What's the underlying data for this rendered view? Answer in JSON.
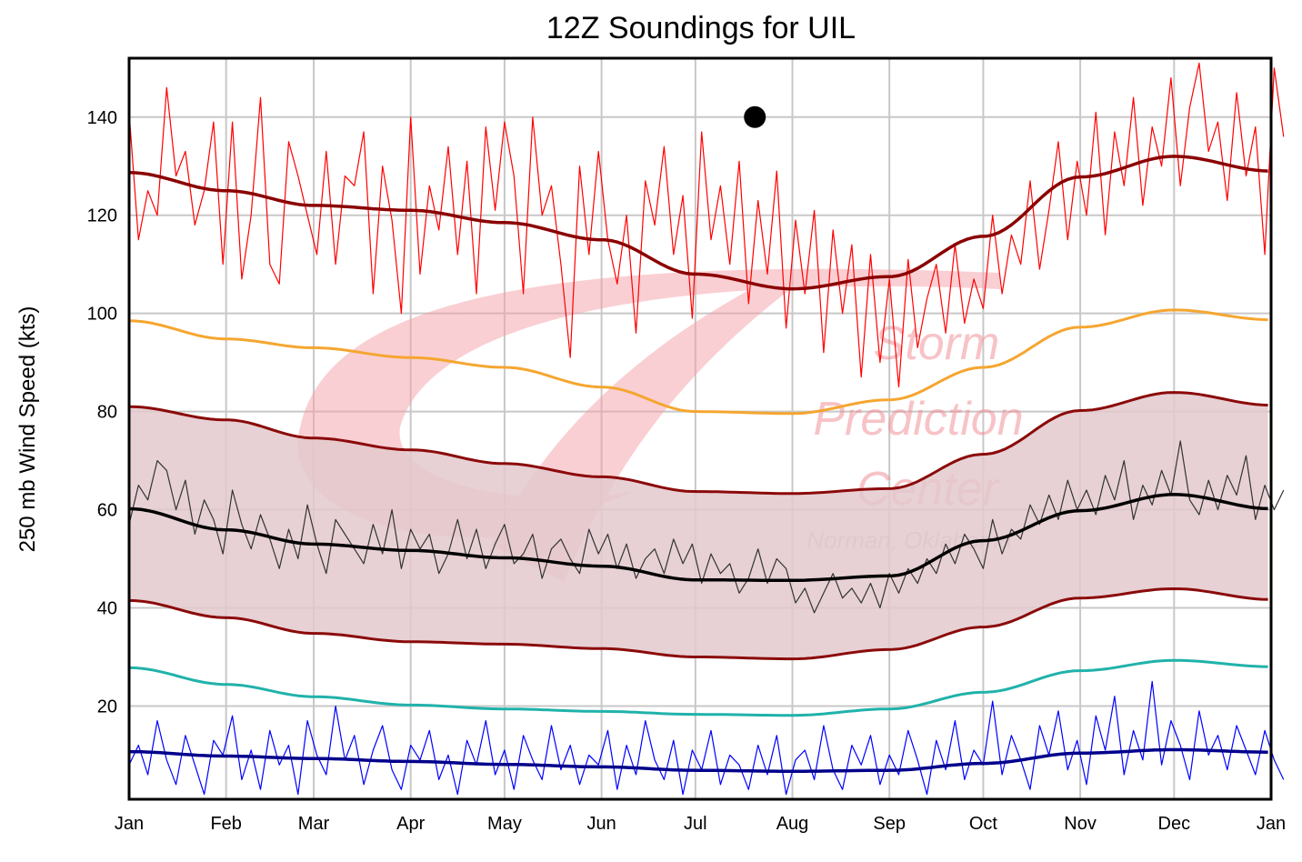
{
  "chart_data": {
    "type": "line",
    "title": "12Z Soundings for UIL",
    "xlabel": "",
    "ylabel": "250 mb Wind Speed (kts)",
    "xlim_days": [
      0,
      365
    ],
    "ylim": [
      1,
      152
    ],
    "grid": true,
    "y_ticks": [
      20,
      40,
      60,
      80,
      100,
      120,
      140
    ],
    "x_ticks": [
      {
        "label": "Jan",
        "day": 0
      },
      {
        "label": "Feb",
        "day": 31
      },
      {
        "label": "Mar",
        "day": 59
      },
      {
        "label": "Apr",
        "day": 90
      },
      {
        "label": "May",
        "day": 120
      },
      {
        "label": "Jun",
        "day": 151
      },
      {
        "label": "Jul",
        "day": 181
      },
      {
        "label": "Aug",
        "day": 212
      },
      {
        "label": "Sep",
        "day": 243
      },
      {
        "label": "Oct",
        "day": 273
      },
      {
        "label": "Nov",
        "day": 304
      },
      {
        "label": "Dec",
        "day": 334
      },
      {
        "label": "Jan",
        "day": 365
      }
    ],
    "smoothed_x_days": [
      0,
      31,
      59,
      90,
      120,
      151,
      181,
      212,
      243,
      273,
      304,
      334,
      365
    ],
    "smoothed_series": [
      {
        "name": "max-smoothed",
        "color": "#8b0000",
        "values": [
          128.7,
          125.0,
          122.0,
          121.0,
          118.5,
          115.0,
          108.0,
          105.0,
          107.5,
          115.7,
          127.8,
          132.0,
          129.0
        ]
      },
      {
        "name": "p99",
        "color": "#f5a630",
        "values": [
          98.5,
          94.8,
          93.0,
          91.0,
          89.0,
          85.0,
          80.0,
          79.6,
          82.4,
          89.0,
          97.2,
          100.7,
          98.7
        ]
      },
      {
        "name": "upper-std",
        "color": "#8b0a0a",
        "values": [
          81.0,
          78.3,
          74.6,
          72.2,
          69.4,
          66.7,
          63.7,
          63.3,
          64.3,
          71.3,
          80.2,
          83.9,
          81.3
        ]
      },
      {
        "name": "mean",
        "color": "#000000",
        "values": [
          60.2,
          55.9,
          53.0,
          51.7,
          50.2,
          48.5,
          45.7,
          45.6,
          46.5,
          53.7,
          59.8,
          63.1,
          60.2
        ]
      },
      {
        "name": "lower-std",
        "color": "#8b0a0a",
        "values": [
          41.5,
          38.0,
          34.8,
          33.1,
          32.6,
          31.7,
          30.0,
          29.6,
          31.5,
          36.1,
          42.0,
          43.9,
          41.7
        ]
      },
      {
        "name": "p1",
        "color": "#20b2aa",
        "values": [
          27.8,
          24.4,
          21.9,
          20.2,
          19.4,
          18.9,
          18.3,
          18.1,
          19.4,
          22.8,
          27.2,
          29.3,
          28.0
        ]
      },
      {
        "name": "min-smoothed",
        "color": "#00008b",
        "values": [
          10.7,
          9.8,
          9.3,
          8.7,
          8.1,
          7.6,
          6.9,
          6.7,
          6.9,
          8.3,
          10.4,
          11.1,
          10.6
        ]
      }
    ],
    "band": {
      "name": "std-band",
      "fill": "#e3c9cc",
      "between": [
        "upper-std",
        "lower-std"
      ]
    },
    "daily_x_step_days": 3,
    "daily_series": [
      {
        "name": "daily-max",
        "color": "#ff0000",
        "values": [
          141,
          115,
          125,
          120,
          146,
          128,
          133,
          118,
          125,
          139,
          110,
          139,
          107,
          120,
          144,
          110,
          106,
          135,
          128,
          120,
          112,
          133,
          110,
          128,
          126,
          137,
          104,
          130,
          119,
          100,
          140,
          108,
          126,
          117,
          134,
          112,
          131,
          104,
          138,
          121,
          139,
          128,
          104,
          140,
          120,
          126,
          110,
          91,
          130,
          112,
          133,
          115,
          106,
          120,
          96,
          127,
          118,
          134,
          112,
          124,
          99,
          137,
          115,
          126,
          110,
          131,
          102,
          123,
          108,
          129,
          97,
          119,
          104,
          121,
          92,
          117,
          100,
          114,
          87,
          112,
          90,
          107,
          85,
          111,
          93,
          103,
          110,
          96,
          114,
          98,
          107,
          101,
          120,
          104,
          116,
          110,
          127,
          109,
          121,
          135,
          115,
          131,
          120,
          141,
          116,
          137,
          126,
          144,
          122,
          138,
          130,
          148,
          126,
          142,
          151,
          133,
          139,
          123,
          145,
          128,
          138,
          112,
          150,
          136
        ]
      },
      {
        "name": "daily-mean",
        "color": "#333333",
        "values": [
          57,
          65,
          62,
          70,
          68,
          60,
          66,
          55,
          62,
          58,
          51,
          64,
          57,
          52,
          59,
          54,
          48,
          56,
          50,
          61,
          53,
          47,
          58,
          55,
          52,
          49,
          57,
          51,
          60,
          48,
          56,
          52,
          55,
          47,
          51,
          58,
          50,
          56,
          48,
          53,
          57,
          49,
          51,
          55,
          46,
          52,
          54,
          50,
          47,
          56,
          51,
          55,
          48,
          53,
          46,
          50,
          52,
          47,
          54,
          49,
          53,
          45,
          51,
          47,
          49,
          43,
          46,
          52,
          45,
          50,
          48,
          41,
          44,
          39,
          43,
          47,
          42,
          44,
          41,
          45,
          40,
          47,
          43,
          48,
          45,
          50,
          47,
          53,
          49,
          55,
          52,
          48,
          58,
          51,
          56,
          54,
          61,
          57,
          63,
          58,
          66,
          60,
          64,
          59,
          67,
          62,
          70,
          58,
          65,
          61,
          68,
          63,
          74,
          62,
          59,
          66,
          60,
          67,
          63,
          71,
          58,
          65,
          60,
          64
        ]
      },
      {
        "name": "daily-min",
        "color": "#0000ff",
        "values": [
          8,
          12,
          6,
          17,
          9,
          4,
          14,
          8,
          2,
          13,
          10,
          18,
          5,
          11,
          3,
          15,
          8,
          12,
          2,
          17,
          10,
          6,
          20,
          9,
          14,
          4,
          11,
          16,
          7,
          3,
          12,
          9,
          15,
          5,
          10,
          2,
          13,
          8,
          17,
          6,
          11,
          3,
          14,
          9,
          5,
          16,
          7,
          12,
          4,
          10,
          8,
          15,
          3,
          12,
          6,
          17,
          9,
          5,
          13,
          2,
          11,
          7,
          15,
          4,
          10,
          8,
          3,
          12,
          6,
          14,
          2,
          9,
          11,
          5,
          16,
          7,
          3,
          12,
          8,
          14,
          4,
          10,
          6,
          15,
          9,
          2,
          13,
          7,
          17,
          5,
          11,
          8,
          21,
          6,
          14,
          9,
          3,
          16,
          10,
          19,
          7,
          13,
          4,
          18,
          11,
          22,
          6,
          15,
          9,
          25,
          8,
          17,
          12,
          5,
          19,
          10,
          14,
          7,
          16,
          11,
          6,
          15,
          9,
          5
        ]
      }
    ],
    "markers": [
      {
        "name": "current-observation",
        "day": 200,
        "value": 140,
        "color": "#000000"
      }
    ],
    "watermark": {
      "line1": "Storm",
      "line2": "Prediction",
      "line3": "Center",
      "line4": "Norman, Oklahoma"
    }
  }
}
